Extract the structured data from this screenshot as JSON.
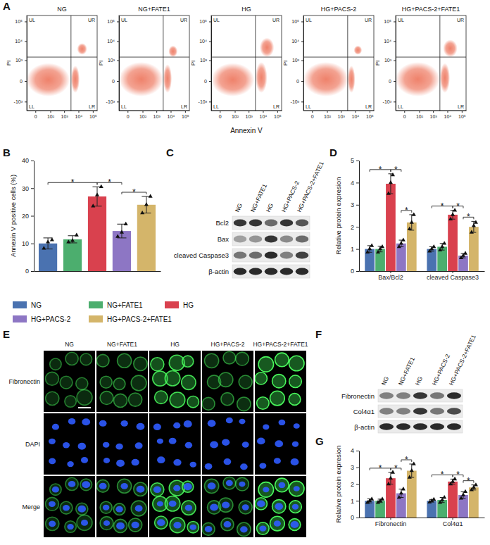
{
  "panel_labels": [
    "A",
    "B",
    "C",
    "D",
    "E",
    "F",
    "G"
  ],
  "chart_data": [
    {
      "type": "density",
      "title": "NG",
      "y_label": "PI",
      "log": true,
      "color": "#ee7b63",
      "xlim": [
        -30,
        200000
      ],
      "ylim": [
        -3000,
        200000
      ],
      "xticks": [
        0,
        {
          "value": 100,
          "label": "10²"
        },
        {
          "value": 1000,
          "label": "10³"
        },
        {
          "value": 10000,
          "label": "10⁴"
        },
        {
          "value": 100000,
          "label": "10⁵"
        }
      ],
      "yticks": [
        {
          "value": -1000,
          "label": "-10³"
        },
        0,
        {
          "value": 1000,
          "label": "10³"
        },
        {
          "value": 10000,
          "label": "10⁴"
        },
        {
          "value": 100000,
          "label": "10⁵"
        }
      ],
      "quadrants": {
        "x": 3000,
        "y": 1500,
        "labels": [
          "UL",
          "UR",
          "LL",
          "LR"
        ]
      },
      "populations": [
        {
          "x": [
            -30,
            2500
          ],
          "y": [
            -500,
            700
          ]
        },
        {
          "x": [
            3000,
            12000
          ],
          "y": [
            -300,
            500
          ]
        },
        {
          "x": [
            8000,
            40000
          ],
          "y": [
            2000,
            8000
          ]
        }
      ]
    },
    {
      "type": "density",
      "title": "NG+FATE1",
      "y_label": "PI",
      "log": true,
      "color": "#ee7b63",
      "xlim": [
        -30,
        200000
      ],
      "ylim": [
        -3000,
        200000
      ],
      "xticks": [
        0,
        {
          "value": 100,
          "label": "10²"
        },
        {
          "value": 1000,
          "label": "10³"
        },
        {
          "value": 10000,
          "label": "10⁴"
        },
        {
          "value": 100000,
          "label": "10⁵"
        }
      ],
      "yticks": [
        {
          "value": -1000,
          "label": "-10³"
        },
        0,
        {
          "value": 1000,
          "label": "10³"
        },
        {
          "value": 10000,
          "label": "10⁴"
        },
        {
          "value": 100000,
          "label": "10⁵"
        }
      ],
      "quadrants": {
        "x": 3000,
        "y": 1500,
        "labels": [
          "UL",
          "UR",
          "LL",
          "LR"
        ]
      },
      "populations": [
        {
          "x": [
            -30,
            3000
          ],
          "y": [
            -500,
            800
          ]
        },
        {
          "x": [
            3000,
            12000
          ],
          "y": [
            -300,
            600
          ]
        },
        {
          "x": [
            7000,
            30000
          ],
          "y": [
            1500,
            6000
          ]
        }
      ]
    },
    {
      "type": "density",
      "title": "HG",
      "y_label": "PI",
      "x_label": "Annexin V",
      "log": true,
      "color": "#ee7b63",
      "xlim": [
        -30,
        200000
      ],
      "ylim": [
        -3000,
        200000
      ],
      "xticks": [
        0,
        {
          "value": 100,
          "label": "10²"
        },
        {
          "value": 1000,
          "label": "10³"
        },
        {
          "value": 10000,
          "label": "10⁴"
        },
        {
          "value": 100000,
          "label": "10⁵"
        }
      ],
      "yticks": [
        {
          "value": -1000,
          "label": "-10³"
        },
        0,
        {
          "value": 1000,
          "label": "10³"
        },
        {
          "value": 10000,
          "label": "10⁴"
        },
        {
          "value": 100000,
          "label": "10⁵"
        }
      ],
      "quadrants": {
        "x": 3000,
        "y": 1500,
        "labels": [
          "UL",
          "UR",
          "LL",
          "LR"
        ]
      },
      "populations": [
        {
          "x": [
            -30,
            2500
          ],
          "y": [
            -500,
            700
          ]
        },
        {
          "x": [
            3000,
            20000
          ],
          "y": [
            -300,
            800
          ]
        },
        {
          "x": [
            6000,
            60000
          ],
          "y": [
            1500,
            15000
          ]
        }
      ]
    },
    {
      "type": "density",
      "title": "HG+PACS-2",
      "y_label": "PI",
      "log": true,
      "color": "#ee7b63",
      "xlim": [
        -30,
        200000
      ],
      "ylim": [
        -3000,
        200000
      ],
      "xticks": [
        0,
        {
          "value": 100,
          "label": "10²"
        },
        {
          "value": 1000,
          "label": "10³"
        },
        {
          "value": 10000,
          "label": "10⁴"
        },
        {
          "value": 100000,
          "label": "10⁵"
        }
      ],
      "yticks": [
        {
          "value": -1000,
          "label": "-10³"
        },
        0,
        {
          "value": 1000,
          "label": "10³"
        },
        {
          "value": 10000,
          "label": "10⁴"
        },
        {
          "value": 100000,
          "label": "10⁵"
        }
      ],
      "quadrants": {
        "x": 3000,
        "y": 1500,
        "labels": [
          "UL",
          "UR",
          "LL",
          "LR"
        ]
      },
      "populations": [
        {
          "x": [
            -30,
            3500
          ],
          "y": [
            -500,
            800
          ]
        },
        {
          "x": [
            3000,
            10000
          ],
          "y": [
            -300,
            500
          ]
        },
        {
          "x": [
            8000,
            30000
          ],
          "y": [
            2000,
            6000
          ]
        }
      ]
    },
    {
      "type": "density",
      "title": "HG+PACS-2+FATE1",
      "y_label": "PI",
      "log": true,
      "color": "#ee7b63",
      "xlim": [
        -30,
        200000
      ],
      "ylim": [
        -3000,
        200000
      ],
      "xticks": [
        0,
        {
          "value": 100,
          "label": "10²"
        },
        {
          "value": 1000,
          "label": "10³"
        },
        {
          "value": 10000,
          "label": "10⁴"
        },
        {
          "value": 100000,
          "label": "10⁵"
        }
      ],
      "yticks": [
        {
          "value": -1000,
          "label": "-10³"
        },
        0,
        {
          "value": 1000,
          "label": "10³"
        },
        {
          "value": 10000,
          "label": "10⁴"
        },
        {
          "value": 100000,
          "label": "10⁵"
        }
      ],
      "quadrants": {
        "x": 3000,
        "y": 1500,
        "labels": [
          "UL",
          "UR",
          "LL",
          "LR"
        ]
      },
      "populations": [
        {
          "x": [
            -30,
            3000
          ],
          "y": [
            -500,
            800
          ]
        },
        {
          "x": [
            3000,
            15000
          ],
          "y": [
            -300,
            700
          ]
        },
        {
          "x": [
            5000,
            50000
          ],
          "y": [
            1500,
            12000
          ]
        }
      ]
    },
    {
      "type": "bar",
      "y_label": "Annexin V positive cells (%)",
      "categories": [
        "NG",
        "NG+FATE1",
        "HG",
        "HG+PACS-2",
        "HG+PACS-2+FATE1"
      ],
      "values": [
        10,
        11.5,
        27,
        14.5,
        24
      ],
      "errors": [
        2,
        1.3,
        3.5,
        2.5,
        3
      ],
      "points": [
        [
          8.2,
          10.5,
          11.3
        ],
        [
          10.5,
          11,
          13
        ],
        [
          23.5,
          27.5,
          30.5
        ],
        [
          12.5,
          14,
          17
        ],
        [
          21,
          24,
          27
        ]
      ],
      "colors": [
        "#4a72b0",
        "#4cae6e",
        "#d9414e",
        "#8d76c4",
        "#d4b56a"
      ],
      "ylim": [
        0,
        40
      ],
      "yticks": [
        0,
        10,
        20,
        30,
        40
      ],
      "tick_labels": "y",
      "legend": "bottom",
      "comparisons": [
        {
          "pair": [
            0,
            2
          ],
          "label": "*"
        },
        {
          "pair": [
            2,
            3
          ],
          "label": "*"
        },
        {
          "pair": [
            3,
            4
          ],
          "label": "*"
        }
      ]
    },
    {
      "type": "bar",
      "y_label": "Relative protein expresion",
      "categories": [
        "Bax/Bcl2",
        "cleaved Caspase3"
      ],
      "series": [
        {
          "color": "#4a72b0",
          "values": [
            1.0,
            1.0
          ],
          "errors": [
            0.15,
            0.1
          ],
          "points": [
            [
              0.85,
              1.0,
              1.15
            ],
            [
              0.9,
              1.0,
              1.1
            ]
          ]
        },
        {
          "color": "#4cae6e",
          "values": [
            1.0,
            1.1
          ],
          "errors": [
            0.13,
            0.15
          ],
          "points": [
            [
              0.85,
              1.0,
              1.1
            ],
            [
              0.95,
              1.1,
              1.25
            ]
          ]
        },
        {
          "color": "#d9414e",
          "values": [
            3.95,
            2.55
          ],
          "errors": [
            0.45,
            0.2
          ],
          "points": [
            [
              3.5,
              4.0,
              4.35
            ],
            [
              2.35,
              2.55,
              2.75
            ]
          ]
        },
        {
          "color": "#8d76c4",
          "values": [
            1.25,
            0.7
          ],
          "errors": [
            0.15,
            0.1
          ],
          "points": [
            [
              1.1,
              1.25,
              1.4
            ],
            [
              0.6,
              0.7,
              0.8
            ]
          ]
        },
        {
          "color": "#d4b56a",
          "values": [
            2.2,
            2.0
          ],
          "errors": [
            0.35,
            0.25
          ],
          "points": [
            [
              1.9,
              2.2,
              2.55
            ],
            [
              1.75,
              2.05,
              2.2
            ]
          ]
        }
      ],
      "ylim": [
        0,
        5
      ],
      "yticks": [
        0,
        1,
        2,
        3,
        4,
        5
      ],
      "comparisons": [
        {
          "category": 0,
          "pair": [
            0,
            2
          ],
          "label": "*"
        },
        {
          "category": 0,
          "pair": [
            2,
            3
          ],
          "label": "*"
        },
        {
          "category": 0,
          "pair": [
            3,
            4
          ],
          "label": "*"
        },
        {
          "category": 1,
          "pair": [
            0,
            2
          ],
          "label": "*"
        },
        {
          "category": 1,
          "pair": [
            2,
            3
          ],
          "label": "*"
        },
        {
          "category": 1,
          "pair": [
            3,
            4
          ],
          "label": "*"
        }
      ]
    },
    {
      "type": "bar",
      "y_label": "Relative protein expresion",
      "categories": [
        "Fibronectin",
        "Col4α1"
      ],
      "series": [
        {
          "color": "#4a72b0",
          "values": [
            1.0,
            1.0
          ],
          "errors": [
            0.12,
            0.08
          ],
          "points": [
            [
              0.9,
              1.0,
              1.1
            ],
            [
              0.92,
              1.0,
              1.08
            ]
          ]
        },
        {
          "color": "#4cae6e",
          "values": [
            1.0,
            1.05
          ],
          "errors": [
            0.1,
            0.15
          ],
          "points": [
            [
              0.9,
              1.0,
              1.1
            ],
            [
              0.9,
              1.05,
              1.2
            ]
          ]
        },
        {
          "color": "#d9414e",
          "values": [
            2.35,
            2.15
          ],
          "errors": [
            0.35,
            0.15
          ],
          "points": [
            [
              2.0,
              2.35,
              2.7
            ],
            [
              2.0,
              2.15,
              2.3
            ]
          ]
        },
        {
          "color": "#8d76c4",
          "values": [
            1.45,
            1.35
          ],
          "errors": [
            0.25,
            0.2
          ],
          "points": [
            [
              1.2,
              1.45,
              1.7
            ],
            [
              1.15,
              1.35,
              1.55
            ]
          ]
        },
        {
          "color": "#d4b56a",
          "values": [
            2.8,
            1.8
          ],
          "errors": [
            0.4,
            0.15
          ],
          "points": [
            [
              2.4,
              2.8,
              3.2
            ],
            [
              1.65,
              1.8,
              1.95
            ]
          ]
        }
      ],
      "ylim": [
        0,
        4
      ],
      "yticks": [
        0,
        1,
        2,
        3,
        4
      ],
      "comparisons": [
        {
          "category": 0,
          "pair": [
            0,
            2
          ],
          "label": "*"
        },
        {
          "category": 0,
          "pair": [
            2,
            3
          ],
          "label": "*"
        },
        {
          "category": 0,
          "pair": [
            3,
            4
          ],
          "label": "*"
        },
        {
          "category": 1,
          "pair": [
            0,
            2
          ],
          "label": "*"
        },
        {
          "category": 1,
          "pair": [
            2,
            3
          ],
          "label": "*"
        },
        {
          "category": 1,
          "pair": [
            3,
            4
          ],
          "label": "*"
        }
      ]
    }
  ],
  "blots": [
    {
      "lanes": [
        "NG",
        "NG+FATE1",
        "HG",
        "HG+PACS-2",
        "HG+PACS-2+FATE1"
      ],
      "rows": [
        {
          "label": "Bcl2",
          "bands": [
            0.85,
            0.85,
            0.6,
            0.85,
            0.7
          ]
        },
        {
          "label": "Bax",
          "bands": [
            0.35,
            0.4,
            0.85,
            0.45,
            0.6
          ]
        },
        {
          "label": "cleaved Caspase3",
          "bands": [
            0.55,
            0.6,
            0.9,
            0.5,
            0.8
          ]
        },
        {
          "label": "β-actin",
          "bands": [
            0.9,
            0.9,
            0.9,
            0.9,
            0.9
          ]
        }
      ]
    },
    {
      "lanes": [
        "NG",
        "NG+FATE1",
        "HG",
        "HG+PACS-2",
        "HG+PACS-2+FATE1"
      ],
      "rows": [
        {
          "label": "Fibronectin",
          "bands": [
            0.5,
            0.5,
            0.85,
            0.55,
            0.9
          ]
        },
        {
          "label": "Col4α1",
          "bands": [
            0.5,
            0.5,
            0.85,
            0.55,
            0.75
          ]
        },
        {
          "label": "β-actin",
          "bands": [
            0.9,
            0.9,
            0.9,
            0.9,
            0.9
          ]
        }
      ]
    }
  ],
  "immunofluorescence": {
    "columns": [
      "NG",
      "NG+FATE1",
      "HG",
      "HG+PACS-2",
      "HG+PACS-2+FATE1"
    ],
    "rows": [
      "Fibronectin",
      "DAPI",
      "Merge"
    ],
    "intensity": [
      0.45,
      0.5,
      0.85,
      0.5,
      0.95
    ]
  }
}
